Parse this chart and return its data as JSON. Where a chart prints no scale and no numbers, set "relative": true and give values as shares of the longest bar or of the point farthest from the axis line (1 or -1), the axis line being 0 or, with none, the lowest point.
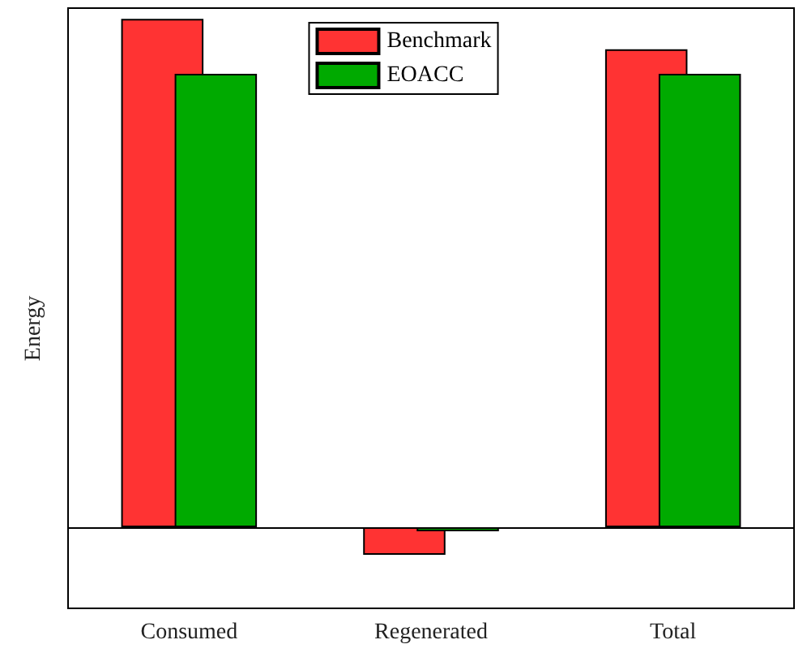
{
  "chart_data": {
    "type": "bar",
    "relative": true,
    "ylabel": "Energy",
    "categories": [
      "Consumed",
      "Regenerated",
      "Total"
    ],
    "legend": "top",
    "series": [
      {
        "name": "Benchmark",
        "color": "#ff3333",
        "values": [
          1,
          -0.054,
          0.94
        ]
      },
      {
        "name": "EOACC",
        "color": "#00aa00",
        "values": [
          0.892,
          -0.008,
          0.892
        ]
      }
    ]
  }
}
